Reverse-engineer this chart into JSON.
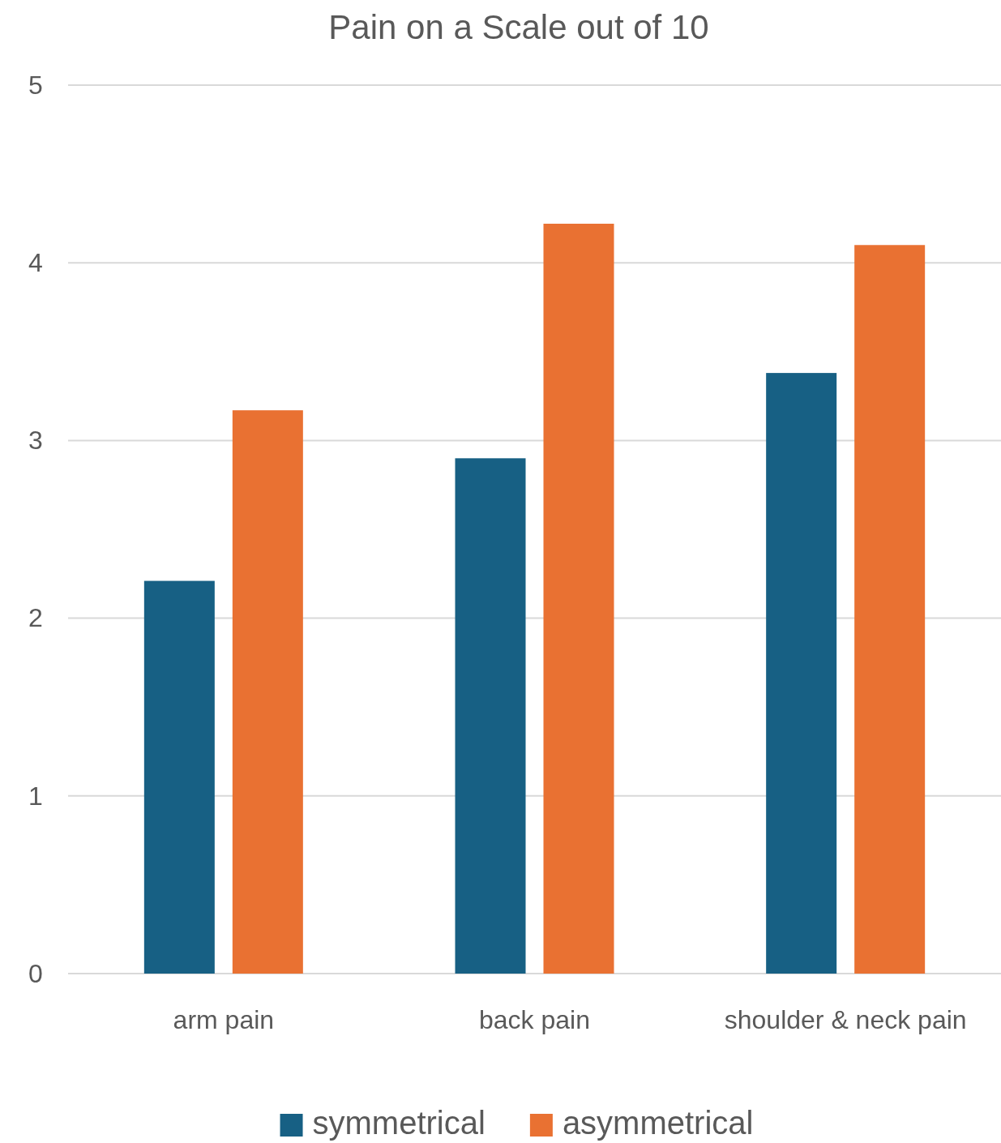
{
  "chart_data": {
    "type": "bar",
    "title": "Pain on a Scale out of 10",
    "categories": [
      "arm pain",
      "back pain",
      "shoulder & neck pain"
    ],
    "series": [
      {
        "name": "symmetrical",
        "color": "#176084",
        "values": [
          2.21,
          2.9,
          3.38
        ]
      },
      {
        "name": "asymmetrical",
        "color": "#e97132",
        "values": [
          3.17,
          4.22,
          4.1
        ]
      }
    ],
    "ylim": [
      0,
      5
    ],
    "yticks": [
      0,
      1,
      2,
      3,
      4,
      5
    ],
    "grid": "y",
    "legend": "bottom"
  }
}
